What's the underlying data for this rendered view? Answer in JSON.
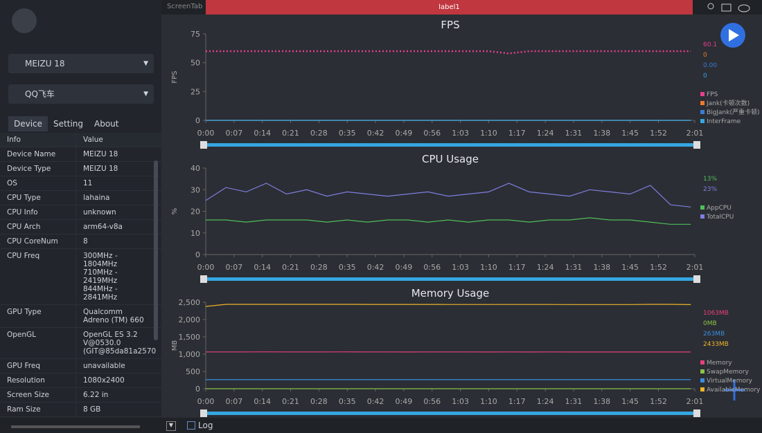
{
  "top_bar": {
    "left_tab": "ScreenTab",
    "active_tab": "label1"
  },
  "sidebar": {
    "device": "MEIZU 18",
    "app": "QQ飞车",
    "tabs": [
      "Device",
      "Setting",
      "About"
    ],
    "table": {
      "header": [
        "Info",
        "Value"
      ],
      "rows": [
        [
          "Device Name",
          [
            "MEIZU 18"
          ]
        ],
        [
          "Device Type",
          [
            "MEIZU 18"
          ]
        ],
        [
          "OS",
          [
            "11"
          ]
        ],
        [
          "CPU Type",
          [
            "lahaina"
          ]
        ],
        [
          "CPU Info",
          [
            "unknown"
          ]
        ],
        [
          "CPU Arch",
          [
            "arm64-v8a"
          ]
        ],
        [
          "CPU CoreNum",
          [
            "8"
          ]
        ],
        [
          "CPU Freq",
          [
            "300MHz -",
            "1804MHz",
            "710MHz -",
            "2419MHz",
            "844MHz -",
            "2841MHz"
          ]
        ],
        [
          "GPU Type",
          [
            "Qualcomm",
            "Adreno (TM) 660"
          ]
        ],
        [
          "OpenGL",
          [
            "OpenGL ES 3.2",
            "V@0530.0",
            "(GIT@85da81a2570"
          ]
        ],
        [
          "GPU Freq",
          [
            "unavailable"
          ]
        ],
        [
          "Resolution",
          [
            "1080x2400"
          ]
        ],
        [
          "Screen Size",
          [
            "6.22 in"
          ]
        ],
        [
          "Ram Size",
          [
            "8 GB"
          ]
        ]
      ]
    }
  },
  "bottom_bar": {
    "log": "Log"
  },
  "chart_data": [
    {
      "type": "line",
      "title": "FPS",
      "y_label": "FPS",
      "x": [
        0,
        5,
        10,
        15,
        20,
        25,
        30,
        35,
        40,
        45,
        50,
        55,
        60,
        65,
        70,
        75,
        80,
        85,
        90,
        95,
        100,
        105,
        110,
        115,
        120
      ],
      "xlim": [
        0,
        121
      ],
      "xticks": [
        {
          "value": 0,
          "label": "0:00"
        },
        {
          "value": 7,
          "label": "0:07"
        },
        {
          "value": 14,
          "label": "0:14"
        },
        {
          "value": 21,
          "label": "0:21"
        },
        {
          "value": 28,
          "label": "0:28"
        },
        {
          "value": 35,
          "label": "0:35"
        },
        {
          "value": 42,
          "label": "0:42"
        },
        {
          "value": 49,
          "label": "0:49"
        },
        {
          "value": 56,
          "label": "0:56"
        },
        {
          "value": 63,
          "label": "1:03"
        },
        {
          "value": 70,
          "label": "1:10"
        },
        {
          "value": 77,
          "label": "1:17"
        },
        {
          "value": 84,
          "label": "1:24"
        },
        {
          "value": 91,
          "label": "1:31"
        },
        {
          "value": 98,
          "label": "1:38"
        },
        {
          "value": 105,
          "label": "1:45"
        },
        {
          "value": 112,
          "label": "1:52"
        },
        {
          "value": 121,
          "label": "2:01"
        }
      ],
      "ylim": [
        0,
        75
      ],
      "yticks": [
        0,
        25,
        50,
        75
      ],
      "series": [
        {
          "name": "FPS",
          "color": "#e83f8f",
          "dashed": true,
          "current": "60.1",
          "values": [
            60,
            60,
            60,
            60,
            60,
            60,
            60,
            60,
            60,
            60,
            60,
            60,
            60,
            60,
            60,
            58,
            60,
            60,
            60,
            60,
            60,
            60,
            60,
            60,
            60
          ]
        },
        {
          "name": "Jank(卡顿次数)",
          "color": "#f07a2b",
          "current": "0",
          "values": [
            0,
            0,
            0,
            0,
            0,
            0,
            0,
            0,
            0,
            0,
            0,
            0,
            0,
            0,
            0,
            0,
            0,
            0,
            0,
            0,
            0,
            0,
            0,
            0,
            0
          ]
        },
        {
          "name": "BigJank(严重卡顿)",
          "color": "#3a7bd5",
          "current": "0.00",
          "values": [
            0,
            0,
            0,
            0,
            0,
            0,
            0,
            0,
            0,
            0,
            0,
            0,
            0,
            0,
            0,
            0,
            0,
            0,
            0,
            0,
            0,
            0,
            0,
            0,
            0
          ]
        },
        {
          "name": "InterFrame",
          "color": "#35a7e0",
          "current": "0",
          "values": [
            0,
            0,
            0,
            0,
            0,
            0,
            0,
            0,
            0,
            0,
            0,
            0,
            0,
            0,
            0,
            0,
            0,
            0,
            0,
            0,
            0,
            0,
            0,
            0,
            0
          ]
        }
      ]
    },
    {
      "type": "line",
      "title": "CPU Usage",
      "y_label": "%",
      "x": [
        0,
        5,
        10,
        15,
        20,
        25,
        30,
        35,
        40,
        45,
        50,
        55,
        60,
        65,
        70,
        75,
        80,
        85,
        90,
        95,
        100,
        105,
        110,
        115,
        120
      ],
      "xlim": [
        0,
        121
      ],
      "xticks": [
        {
          "value": 0,
          "label": "0:00"
        },
        {
          "value": 7,
          "label": "0:07"
        },
        {
          "value": 14,
          "label": "0:14"
        },
        {
          "value": 21,
          "label": "0:21"
        },
        {
          "value": 28,
          "label": "0:28"
        },
        {
          "value": 35,
          "label": "0:35"
        },
        {
          "value": 42,
          "label": "0:42"
        },
        {
          "value": 49,
          "label": "0:49"
        },
        {
          "value": 56,
          "label": "0:56"
        },
        {
          "value": 63,
          "label": "1:03"
        },
        {
          "value": 70,
          "label": "1:10"
        },
        {
          "value": 77,
          "label": "1:17"
        },
        {
          "value": 84,
          "label": "1:24"
        },
        {
          "value": 91,
          "label": "1:31"
        },
        {
          "value": 98,
          "label": "1:38"
        },
        {
          "value": 105,
          "label": "1:45"
        },
        {
          "value": 112,
          "label": "1:52"
        },
        {
          "value": 121,
          "label": "2:01"
        }
      ],
      "ylim": [
        0,
        40
      ],
      "yticks": [
        0,
        10,
        20,
        30,
        40
      ],
      "series": [
        {
          "name": "AppCPU",
          "color": "#4fbf5a",
          "current": "13%",
          "values": [
            16,
            16,
            15,
            16,
            16,
            16,
            15,
            16,
            15,
            16,
            16,
            15,
            16,
            15,
            16,
            16,
            15,
            16,
            16,
            17,
            16,
            16,
            15,
            14,
            14
          ]
        },
        {
          "name": "TotalCPU",
          "color": "#7f7fe0",
          "current": "23%",
          "values": [
            25,
            31,
            29,
            33,
            28,
            30,
            27,
            29,
            28,
            27,
            28,
            29,
            27,
            28,
            29,
            33,
            29,
            28,
            27,
            30,
            29,
            28,
            32,
            23,
            22
          ]
        }
      ]
    },
    {
      "type": "line",
      "title": "Memory Usage",
      "y_label": "MB",
      "x": [
        0,
        5,
        10,
        15,
        20,
        25,
        30,
        35,
        40,
        45,
        50,
        55,
        60,
        65,
        70,
        75,
        80,
        85,
        90,
        95,
        100,
        105,
        110,
        115,
        120
      ],
      "xlim": [
        0,
        121
      ],
      "xticks": [
        {
          "value": 0,
          "label": "0:00"
        },
        {
          "value": 7,
          "label": "0:07"
        },
        {
          "value": 14,
          "label": "0:14"
        },
        {
          "value": 21,
          "label": "0:21"
        },
        {
          "value": 28,
          "label": "0:28"
        },
        {
          "value": 35,
          "label": "0:35"
        },
        {
          "value": 42,
          "label": "0:42"
        },
        {
          "value": 49,
          "label": "0:49"
        },
        {
          "value": 56,
          "label": "0:56"
        },
        {
          "value": 63,
          "label": "1:03"
        },
        {
          "value": 70,
          "label": "1:10"
        },
        {
          "value": 77,
          "label": "1:17"
        },
        {
          "value": 84,
          "label": "1:24"
        },
        {
          "value": 91,
          "label": "1:31"
        },
        {
          "value": 98,
          "label": "1:38"
        },
        {
          "value": 105,
          "label": "1:45"
        },
        {
          "value": 112,
          "label": "1:52"
        },
        {
          "value": 121,
          "label": "2:01"
        }
      ],
      "ylim": [
        0,
        2500
      ],
      "yticks": [
        0,
        500,
        {
          "value": 1000,
          "label": "1,000"
        },
        {
          "value": 1500,
          "label": "1,500"
        },
        {
          "value": 2000,
          "label": "2,000"
        },
        {
          "value": 2500,
          "label": "2,500"
        }
      ],
      "series": [
        {
          "name": "Memory",
          "color": "#e8407a",
          "current": "1063MB",
          "values": [
            1065,
            1065,
            1064,
            1066,
            1065,
            1064,
            1065,
            1066,
            1065,
            1064,
            1063,
            1064,
            1065,
            1064,
            1063,
            1064,
            1063,
            1064,
            1063,
            1062,
            1063,
            1062,
            1063,
            1063,
            1063
          ]
        },
        {
          "name": "SwapMemory",
          "color": "#8bc34a",
          "current": "0MB",
          "values": [
            0,
            0,
            0,
            0,
            0,
            0,
            0,
            0,
            0,
            0,
            0,
            0,
            0,
            0,
            0,
            0,
            0,
            0,
            0,
            0,
            0,
            0,
            0,
            0,
            0
          ]
        },
        {
          "name": "VirtualMemory",
          "color": "#3a8ee0",
          "current": "263MB",
          "values": [
            263,
            263,
            263,
            263,
            263,
            263,
            263,
            263,
            263,
            263,
            263,
            263,
            263,
            263,
            263,
            263,
            263,
            263,
            263,
            263,
            263,
            263,
            263,
            263,
            263
          ]
        },
        {
          "name": "AvailableMemory",
          "color": "#f0b429",
          "current": "2433MB",
          "values": [
            2380,
            2440,
            2440,
            2440,
            2440,
            2440,
            2440,
            2440,
            2438,
            2438,
            2438,
            2438,
            2436,
            2436,
            2436,
            2436,
            2436,
            2436,
            2434,
            2434,
            2434,
            2434,
            2440,
            2440,
            2433
          ]
        }
      ]
    }
  ]
}
